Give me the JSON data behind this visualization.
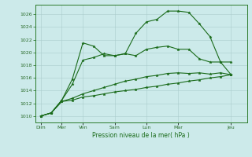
{
  "background_color": "#cceaea",
  "grid_color": "#aacccc",
  "line_color": "#1a6b1a",
  "xlabel": "Pression niveau de la mer( hPa )",
  "ylim": [
    1009.0,
    1027.5
  ],
  "yticks": [
    1010,
    1012,
    1014,
    1016,
    1018,
    1020,
    1022,
    1024,
    1026
  ],
  "xtick_labels": [
    "Dim",
    "Mer",
    "Ven",
    "Sam",
    "Lun",
    "Mar",
    "Jeu"
  ],
  "xtick_positions": [
    0,
    2,
    4,
    7,
    10,
    13,
    18
  ],
  "xlim": [
    -0.5,
    19.5
  ],
  "series": [
    [
      1010,
      1010.5,
      1012.3,
      1012.5,
      1013.0,
      1013.2,
      1013.5,
      1013.8,
      1014.0,
      1014.2,
      1014.5,
      1014.7,
      1015.0,
      1015.2,
      1015.5,
      1015.7,
      1016.0,
      1016.2,
      1016.5
    ],
    [
      1010,
      1010.5,
      1012.3,
      1012.8,
      1013.5,
      1014.0,
      1014.5,
      1015.0,
      1015.5,
      1015.8,
      1016.2,
      1016.4,
      1016.7,
      1016.8,
      1016.7,
      1016.8,
      1016.6,
      1016.8,
      1016.5
    ],
    [
      1010,
      1010.5,
      1012.5,
      1015.0,
      1018.8,
      1019.2,
      1019.8,
      1019.5,
      1019.8,
      1019.5,
      1020.5,
      1020.8,
      1021.0,
      1020.5,
      1020.5,
      1019.0,
      1018.5,
      1018.5,
      1018.5
    ],
    [
      1010,
      1010.5,
      1012.5,
      1015.8,
      1021.5,
      1021.0,
      1019.5,
      1019.5,
      1019.8,
      1023.0,
      1024.8,
      1025.2,
      1026.5,
      1026.5,
      1026.3,
      1024.5,
      1022.5,
      1018.5,
      1016.5
    ]
  ]
}
